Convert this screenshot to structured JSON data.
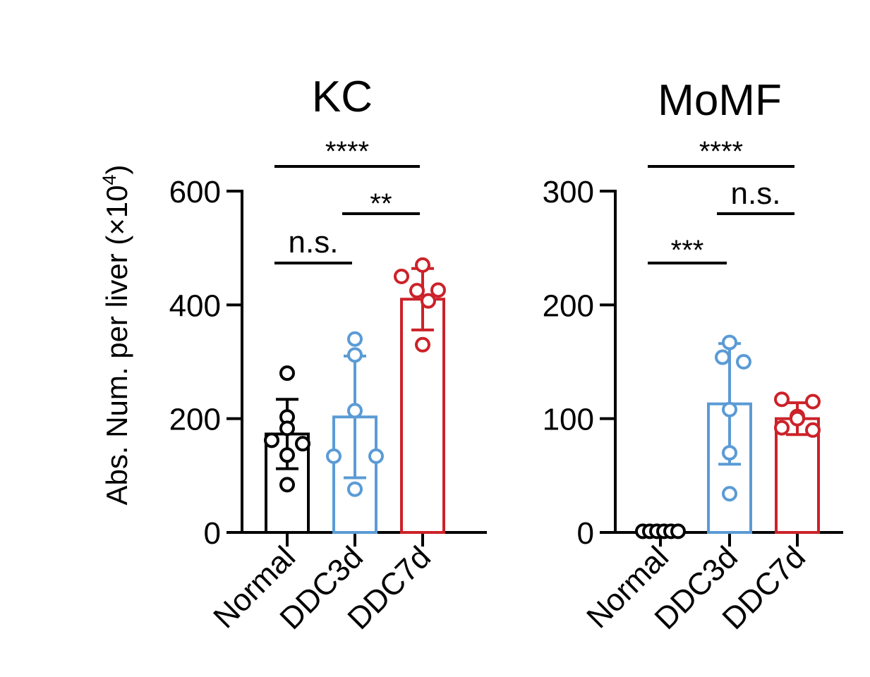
{
  "ylabel_main": "Abs. Num. per liver (×10",
  "ylabel_exp": "4",
  "ylabel_close": ")",
  "colors": {
    "Normal": "#000000",
    "DDC3d": "#5b9bd5",
    "DDC7d": "#cc2229"
  },
  "chart_data": [
    {
      "type": "bar",
      "title": "KC",
      "categories": [
        "Normal",
        "DDC3d",
        "DDC7d"
      ],
      "values": [
        173,
        203,
        410
      ],
      "errors": [
        61,
        107,
        54
      ],
      "points": [
        [
          280,
          203,
          183,
          162,
          156,
          136,
          84
        ],
        [
          340,
          312,
          214,
          134,
          134,
          76
        ],
        [
          470,
          450,
          425,
          426,
          407,
          330
        ]
      ],
      "ylim": [
        0,
        600
      ],
      "yticks": [
        "0",
        "200",
        "400",
        "600"
      ],
      "comparisons": [
        {
          "from": 0,
          "to": 2,
          "label": "****"
        },
        {
          "from": 1,
          "to": 2,
          "label": "**"
        },
        {
          "from": 0,
          "to": 1,
          "label": "n.s."
        }
      ]
    },
    {
      "type": "bar",
      "title": "MoMF",
      "categories": [
        "Normal",
        "DDC3d",
        "DDC7d"
      ],
      "values": [
        1,
        113,
        100
      ],
      "errors": [
        0,
        53,
        14
      ],
      "points": [
        [
          1,
          1,
          1,
          1,
          1,
          1
        ],
        [
          167,
          154,
          150,
          108,
          70,
          34
        ],
        [
          117,
          115,
          102,
          100,
          92,
          90
        ]
      ],
      "ylim": [
        0,
        300
      ],
      "yticks": [
        "0",
        "100",
        "200",
        "300"
      ],
      "comparisons": [
        {
          "from": 0,
          "to": 2,
          "label": "****"
        },
        {
          "from": 1,
          "to": 2,
          "label": "n.s."
        },
        {
          "from": 0,
          "to": 1,
          "label": "***"
        }
      ]
    }
  ]
}
